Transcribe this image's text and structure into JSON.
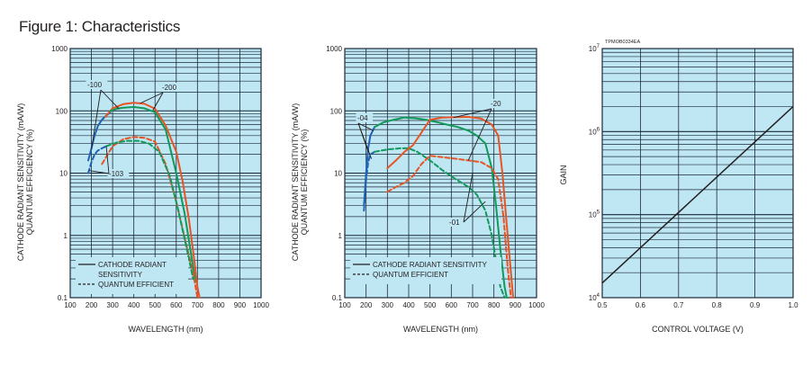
{
  "figure_title": "Figure 1: Characteristics",
  "colors": {
    "plot_bg": "#bfe6f3",
    "grid": "#1c2a3a",
    "blue": "#1f63b5",
    "red": "#e55526",
    "green": "#119a5b",
    "black": "#231f20"
  },
  "chart_data": [
    {
      "type": "line",
      "panel": "left",
      "xlabel": "WAVELENGTH (nm)",
      "ylabel": "CATHODE RADIANT SENSITIVITY (mA/W)",
      "ylabel2": "QUANTUM EFFICIENCY (%)",
      "x_scale": "linear",
      "y_scale": "log",
      "xlim": [
        100,
        1000
      ],
      "ylim": [
        0.1,
        1000
      ],
      "x_ticks": [
        "100",
        "200",
        "300",
        "400",
        "500",
        "600",
        "700",
        "800",
        "900",
        "1000"
      ],
      "y_ticks": [
        "0.1",
        "1",
        "10",
        "100",
        "1000"
      ],
      "legend": {
        "placement": "bottom-left",
        "items": [
          {
            "style": "solid",
            "text": [
              "CATHODE RADIANT",
              "SENSITIVITY"
            ]
          },
          {
            "style": "dashed",
            "text": [
              "QUANTUM EFFICIENT"
            ]
          }
        ]
      },
      "annotations": [
        "-100",
        "-200",
        "-103"
      ],
      "series": [
        {
          "color": "blue",
          "style": "solid",
          "x": [
            185,
            200,
            215,
            230,
            250,
            270,
            290
          ],
          "y": [
            16,
            25,
            40,
            57,
            72,
            84,
            95
          ]
        },
        {
          "color": "blue",
          "style": "dashed",
          "x": [
            185,
            200,
            215,
            230,
            250,
            270
          ],
          "y": [
            10,
            15,
            20,
            23,
            25,
            27
          ]
        },
        {
          "color": "red",
          "style": "solid",
          "x": [
            265,
            300,
            350,
            400,
            450,
            500,
            550,
            600,
            630,
            660,
            680,
            700,
            710
          ],
          "y": [
            80,
            110,
            128,
            135,
            130,
            108,
            58,
            22,
            7.5,
            1.8,
            0.55,
            0.15,
            0.1
          ]
        },
        {
          "color": "green",
          "style": "solid",
          "x": [
            290,
            320,
            350,
            400,
            450,
            500,
            550,
            600,
            640,
            670,
            690
          ],
          "y": [
            100,
            108,
            112,
            115,
            110,
            95,
            50,
            10,
            2.2,
            0.5,
            0.18
          ]
        },
        {
          "color": "red",
          "style": "dashed",
          "x": [
            250,
            300,
            350,
            400,
            450,
            500,
            550,
            600,
            640,
            680,
            700
          ],
          "y": [
            14,
            27,
            35,
            38,
            37,
            32,
            14,
            3.5,
            0.9,
            0.25,
            0.1
          ]
        },
        {
          "color": "green",
          "style": "dashed",
          "x": [
            270,
            320,
            370,
            420,
            470,
            520,
            570,
            610,
            650,
            680
          ],
          "y": [
            27,
            31,
            33,
            33,
            30,
            22,
            9,
            2.5,
            0.6,
            0.2
          ]
        }
      ]
    },
    {
      "type": "line",
      "panel": "middle",
      "xlabel": "WAVELENGTH (nm)",
      "ylabel": "CATHODE RADIANT SENSITIVITY (mA/W)",
      "ylabel2": "QUANTUM EFFICIENCY (%)",
      "x_scale": "linear",
      "y_scale": "log",
      "xlim": [
        100,
        1000
      ],
      "ylim": [
        0.1,
        1000
      ],
      "x_ticks": [
        "100",
        "200",
        "300",
        "400",
        "500",
        "600",
        "700",
        "800",
        "900",
        "1000"
      ],
      "y_ticks": [
        "0.1",
        "1",
        "10",
        "100",
        "1000"
      ],
      "legend": {
        "placement": "bottom-left",
        "items": [
          {
            "style": "solid",
            "text": [
              "CATHODE RADIANT SENSITIVITY"
            ]
          },
          {
            "style": "dashed",
            "text": [
              "QUANTUM EFFICIENT"
            ]
          }
        ]
      },
      "annotations": [
        "-04",
        "-20",
        "-01"
      ],
      "series": [
        {
          "color": "blue",
          "style": "solid",
          "x": [
            190,
            200,
            210,
            220,
            240
          ],
          "y": [
            3,
            10,
            25,
            40,
            55
          ]
        },
        {
          "color": "blue",
          "style": "dashed",
          "x": [
            190,
            200,
            210,
            220,
            240
          ],
          "y": [
            2.5,
            8,
            15,
            20,
            22
          ]
        },
        {
          "color": "green",
          "style": "solid",
          "x": [
            240,
            280,
            330,
            380,
            430,
            480,
            530,
            580,
            630,
            680,
            720,
            760,
            790,
            810,
            830,
            850,
            860
          ],
          "y": [
            55,
            65,
            72,
            78,
            76,
            72,
            66,
            60,
            55,
            48,
            40,
            30,
            12,
            3,
            0.6,
            0.15,
            0.1
          ]
        },
        {
          "color": "green",
          "style": "dashed",
          "x": [
            240,
            300,
            360,
            400,
            440,
            500,
            560,
            620,
            680,
            720,
            760,
            790,
            810,
            830,
            850
          ],
          "y": [
            22,
            24,
            25,
            25,
            22,
            16,
            11,
            8,
            6,
            4.5,
            2.5,
            1,
            0.4,
            0.15,
            0.1
          ]
        },
        {
          "color": "red",
          "style": "solid",
          "x": [
            300,
            340,
            380,
            420,
            460,
            500,
            560,
            620,
            680,
            740,
            790,
            820,
            840,
            860,
            880,
            890
          ],
          "y": [
            12,
            16,
            22,
            28,
            45,
            72,
            78,
            79,
            80,
            75,
            60,
            40,
            10,
            1.5,
            0.25,
            0.1
          ]
        },
        {
          "color": "red",
          "style": "dashed",
          "x": [
            300,
            340,
            380,
            420,
            460,
            500,
            560,
            620,
            680,
            740,
            790,
            820,
            845,
            865,
            880
          ],
          "y": [
            5,
            6,
            7,
            9,
            14,
            19,
            18,
            17,
            16,
            15,
            12,
            8,
            2,
            0.3,
            0.1
          ]
        }
      ]
    },
    {
      "type": "line",
      "panel": "right",
      "xlabel": "CONTROL VOLTAGE (V)",
      "ylabel": "GAIN",
      "code": "TPMOB0334EA",
      "x_scale": "linear",
      "y_scale": "log",
      "xlim": [
        0.5,
        1.0
      ],
      "ylim": [
        10000,
        10000000
      ],
      "x_ticks": [
        "0.5",
        "0.6",
        "0.7",
        "0.8",
        "0.9",
        "1.0"
      ],
      "y_tick_exponents": [
        "4",
        "5",
        "6",
        "7"
      ],
      "y_tick_base": "10",
      "series": [
        {
          "color": "black",
          "style": "solid",
          "x": [
            0.5,
            1.0
          ],
          "y": [
            15000,
            2000000
          ]
        }
      ]
    }
  ]
}
